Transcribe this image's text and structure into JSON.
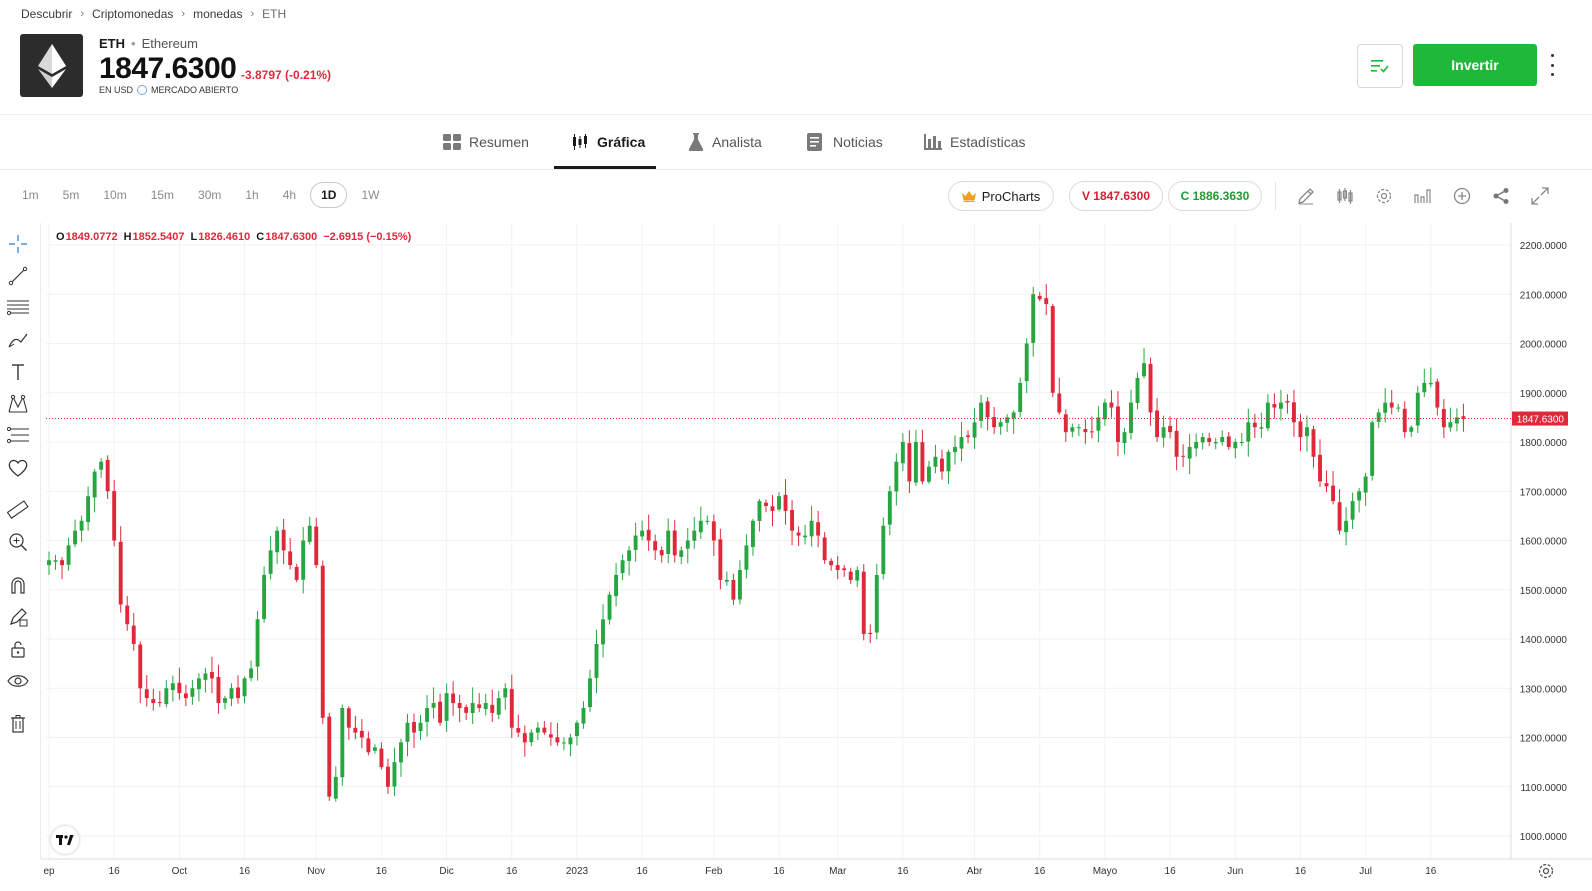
{
  "breadcrumb": [
    "Descubrir",
    "Criptomonedas",
    "monedas",
    "ETH"
  ],
  "asset": {
    "ticker": "ETH",
    "name": "Ethereum",
    "price": "1847.6300",
    "change": "-3.8797 (-0.21%)",
    "currency": "EN USD",
    "market_status": "MERCADO ABIERTO"
  },
  "header": {
    "invest_label": "Invertir"
  },
  "tabs": [
    {
      "label": "Resumen",
      "icon": "grid-icon"
    },
    {
      "label": "Gráfica",
      "icon": "candles-icon"
    },
    {
      "label": "Analista",
      "icon": "flask-icon"
    },
    {
      "label": "Noticias",
      "icon": "newspaper-icon"
    },
    {
      "label": "Estadísticas",
      "icon": "bar-chart-icon"
    }
  ],
  "active_tab": "Gráfica",
  "timeframes": [
    "1m",
    "5m",
    "10m",
    "15m",
    "30m",
    "1h",
    "4h",
    "1D",
    "1W"
  ],
  "active_timeframe": "1D",
  "toolbar": {
    "procharts_label": "ProCharts",
    "sell_label": "V 1847.6300",
    "buy_label": "C 1886.3630"
  },
  "ohlc": {
    "o_label": "O",
    "o": "1849.0772",
    "h_label": "H",
    "h": "1852.5407",
    "l_label": "L",
    "l": "1826.4610",
    "c_label": "C",
    "c": "1847.6300",
    "change": "−2.6915 (−0.15%)"
  },
  "colors": {
    "up": "#26a641",
    "down": "#e0283b",
    "accent": "#1fb838"
  },
  "chart_data": {
    "type": "candlestick",
    "y_ticks": [
      "2200.0000",
      "2100.0000",
      "2000.0000",
      "1900.0000",
      "1800.0000",
      "1700.0000",
      "1600.0000",
      "1500.0000",
      "1400.0000",
      "1300.0000",
      "1200.0000",
      "1100.0000",
      "1000.0000"
    ],
    "ylim": [
      960,
      2250
    ],
    "last_price_label": "1847.6300",
    "last_price": 1847.63,
    "x_ticks": [
      {
        "label": "ep",
        "index": 0
      },
      {
        "label": "16",
        "index": 10
      },
      {
        "label": "Oct",
        "index": 20
      },
      {
        "label": "16",
        "index": 30
      },
      {
        "label": "Nov",
        "index": 41
      },
      {
        "label": "16",
        "index": 51
      },
      {
        "label": "Dic",
        "index": 61
      },
      {
        "label": "16",
        "index": 71
      },
      {
        "label": "2023",
        "index": 81
      },
      {
        "label": "16",
        "index": 91
      },
      {
        "label": "Feb",
        "index": 102
      },
      {
        "label": "16",
        "index": 112
      },
      {
        "label": "Mar",
        "index": 121
      },
      {
        "label": "16",
        "index": 131
      },
      {
        "label": "Abr",
        "index": 142
      },
      {
        "label": "16",
        "index": 152
      },
      {
        "label": "Mayo",
        "index": 162
      },
      {
        "label": "16",
        "index": 172
      },
      {
        "label": "Jun",
        "index": 182
      },
      {
        "label": "16",
        "index": 192
      },
      {
        "label": "Jul",
        "index": 202
      },
      {
        "label": "16",
        "index": 212
      }
    ],
    "x_total": 222,
    "close": [
      1560,
      1560,
      1550,
      1590,
      1620,
      1640,
      1690,
      1740,
      1760,
      1700,
      1600,
      1470,
      1430,
      1390,
      1300,
      1280,
      1270,
      1270,
      1300,
      1310,
      1290,
      1280,
      1300,
      1320,
      1330,
      1320,
      1270,
      1280,
      1300,
      1280,
      1320,
      1340,
      1440,
      1530,
      1580,
      1620,
      1580,
      1550,
      1520,
      1600,
      1630,
      1550,
      1240,
      1080,
      1120,
      1260,
      1220,
      1210,
      1200,
      1170,
      1180,
      1140,
      1100,
      1150,
      1190,
      1230,
      1210,
      1230,
      1260,
      1270,
      1230,
      1290,
      1270,
      1260,
      1250,
      1270,
      1260,
      1270,
      1250,
      1280,
      1300,
      1220,
      1210,
      1190,
      1210,
      1220,
      1210,
      1200,
      1190,
      1190,
      1200,
      1230,
      1260,
      1320,
      1390,
      1440,
      1490,
      1530,
      1560,
      1580,
      1610,
      1620,
      1600,
      1580,
      1570,
      1620,
      1570,
      1580,
      1600,
      1620,
      1640,
      1640,
      1600,
      1520,
      1520,
      1480,
      1540,
      1590,
      1640,
      1680,
      1670,
      1660,
      1690,
      1660,
      1620,
      1610,
      1610,
      1640,
      1610,
      1560,
      1550,
      1540,
      1540,
      1520,
      1540,
      1410,
      1410,
      1530,
      1630,
      1700,
      1760,
      1800,
      1720,
      1800,
      1720,
      1750,
      1770,
      1740,
      1780,
      1790,
      1810,
      1810,
      1840,
      1880,
      1850,
      1830,
      1840,
      1850,
      1860,
      1920,
      2000,
      2100,
      2090,
      2080,
      1900,
      1860,
      1820,
      1830,
      1830,
      1820,
      1820,
      1850,
      1880,
      1870,
      1800,
      1820,
      1880,
      1930,
      1960,
      1860,
      1810,
      1830,
      1820,
      1770,
      1770,
      1790,
      1800,
      1810,
      1800,
      1800,
      1810,
      1790,
      1800,
      1800,
      1840,
      1830,
      1830,
      1880,
      1870,
      1880,
      1880,
      1840,
      1810,
      1830,
      1770,
      1720,
      1710,
      1680,
      1620,
      1640,
      1680,
      1700,
      1730,
      1840,
      1860,
      1880,
      1870,
      1870,
      1820,
      1830,
      1900,
      1920,
      1920,
      1870,
      1830,
      1840,
      1850,
      1847
    ]
  }
}
